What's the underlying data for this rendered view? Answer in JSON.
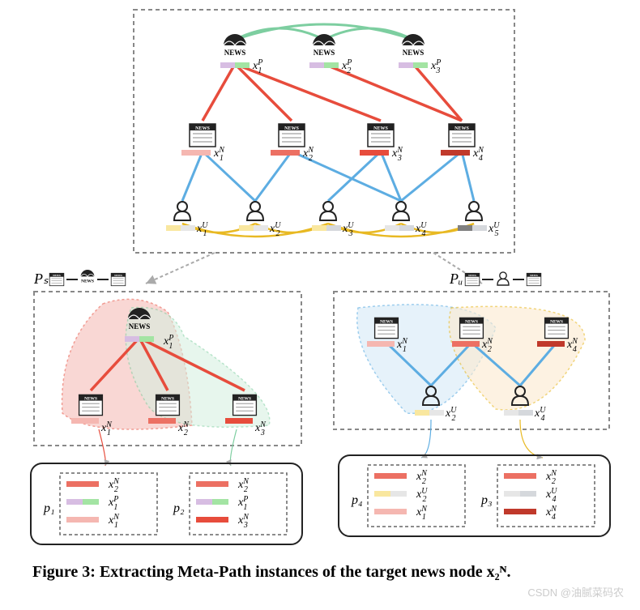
{
  "caption": "Figure 3: Extracting Meta-Path instances of the target news node x₂ᴺ.",
  "watermark": "CSDN @油腻菜码农",
  "colors": {
    "red_edge": "#e74c3c",
    "blue_edge": "#5dade2",
    "green_edge": "#7dcea0",
    "gold_edge": "#e8b923",
    "pink1": "#f5b7b1",
    "pink2": "#ec7063",
    "pink3": "#e74c3c",
    "darkred": "#c0392b",
    "lav": "#d7bde2",
    "gprov": "#a3e4a3",
    "tan1": "#f9e79f",
    "tan2": "#e6e6e6",
    "tan3": "#d5d8dc",
    "tan4": "#808080",
    "blob_red": "#f5b7b1",
    "blob_green": "#d4efdf",
    "blob_blue": "#d6eaf8",
    "blob_yellow": "#fdebd0"
  },
  "top": {
    "providers": [
      {
        "label": "x",
        "sub": "1",
        "sup": "P",
        "swatches": [
          "#d7bde2",
          "#a3e4a3"
        ]
      },
      {
        "label": "x",
        "sub": "2",
        "sup": "P",
        "swatches": [
          "#d7bde2",
          "#a3e4a3"
        ]
      },
      {
        "label": "x",
        "sub": "3",
        "sup": "P",
        "swatches": [
          "#d7bde2",
          "#a3e4a3"
        ]
      }
    ],
    "news": [
      {
        "label": "x",
        "sub": "1",
        "sup": "N",
        "swatch": "#f5b7b1"
      },
      {
        "label": "x",
        "sub": "2",
        "sup": "N",
        "swatch": "#ec7063"
      },
      {
        "label": "x",
        "sub": "3",
        "sup": "N",
        "swatch": "#e74c3c"
      },
      {
        "label": "x",
        "sub": "4",
        "sup": "N",
        "swatch": "#c0392b"
      }
    ],
    "users": [
      {
        "label": "x",
        "sub": "1",
        "sup": "U",
        "sw": [
          "#f9e79f",
          "#e6e6e6"
        ]
      },
      {
        "label": "x",
        "sub": "2",
        "sup": "U",
        "sw": [
          "#f9e79f",
          "#e6e6e6"
        ]
      },
      {
        "label": "x",
        "sub": "3",
        "sup": "U",
        "sw": [
          "#f9e79f",
          "#d5d8dc"
        ]
      },
      {
        "label": "x",
        "sub": "4",
        "sup": "U",
        "sw": [
          "#e6e6e6",
          "#d5d8dc"
        ]
      },
      {
        "label": "x",
        "sub": "5",
        "sup": "U",
        "sw": [
          "#808080",
          "#d5d8dc"
        ]
      }
    ],
    "edges_PN": [
      [
        0,
        0
      ],
      [
        0,
        1
      ],
      [
        0,
        2
      ],
      [
        1,
        3
      ],
      [
        2,
        3
      ]
    ],
    "edges_NU": [
      [
        0,
        0
      ],
      [
        0,
        1
      ],
      [
        1,
        1
      ],
      [
        1,
        3
      ],
      [
        2,
        2
      ],
      [
        2,
        3
      ],
      [
        3,
        3
      ],
      [
        3,
        4
      ]
    ],
    "edges_PP": [
      [
        0,
        1
      ],
      [
        1,
        2
      ],
      [
        0,
        2
      ]
    ],
    "edges_UU": [
      [
        0,
        1
      ],
      [
        1,
        2
      ],
      [
        2,
        3
      ],
      [
        3,
        4
      ],
      [
        0,
        2
      ],
      [
        2,
        4
      ]
    ]
  },
  "left": {
    "title": "Pₛ",
    "schema": [
      "news-doc",
      "provider",
      "news-doc"
    ],
    "provider": {
      "label": "x",
      "sub": "1",
      "sup": "P",
      "swatches": [
        "#d7bde2",
        "#a3e4a3"
      ]
    },
    "news": [
      {
        "label": "x",
        "sub": "1",
        "sup": "N",
        "swatch": "#f5b7b1"
      },
      {
        "label": "x",
        "sub": "2",
        "sup": "N",
        "swatch": "#ec7063"
      },
      {
        "label": "x",
        "sub": "3",
        "sup": "N",
        "swatch": "#e74c3c"
      }
    ],
    "paths": [
      {
        "id": "p₁",
        "items": [
          {
            "sw": "#ec7063",
            "t": "x",
            "s": "2",
            "p": "N"
          },
          {
            "sw": "#d7bde2",
            "sw2": "#a3e4a3",
            "t": "x",
            "s": "1",
            "p": "P"
          },
          {
            "sw": "#f5b7b1",
            "t": "x",
            "s": "1",
            "p": "N"
          }
        ]
      },
      {
        "id": "p₂",
        "items": [
          {
            "sw": "#ec7063",
            "t": "x",
            "s": "2",
            "p": "N"
          },
          {
            "sw": "#d7bde2",
            "sw2": "#a3e4a3",
            "t": "x",
            "s": "1",
            "p": "P"
          },
          {
            "sw": "#e74c3c",
            "t": "x",
            "s": "3",
            "p": "N"
          }
        ]
      }
    ]
  },
  "right": {
    "title": "Pᵤ",
    "schema": [
      "news-doc",
      "user",
      "news-doc"
    ],
    "news": [
      {
        "label": "x",
        "sub": "1",
        "sup": "N",
        "swatch": "#f5b7b1"
      },
      {
        "label": "x",
        "sub": "2",
        "sup": "N",
        "swatch": "#ec7063"
      },
      {
        "label": "x",
        "sub": "4",
        "sup": "N",
        "swatch": "#c0392b"
      }
    ],
    "users": [
      {
        "label": "x",
        "sub": "2",
        "sup": "U",
        "sw": [
          "#f9e79f",
          "#e6e6e6"
        ]
      },
      {
        "label": "x",
        "sub": "4",
        "sup": "U",
        "sw": [
          "#e6e6e6",
          "#d5d8dc"
        ]
      }
    ],
    "paths": [
      {
        "id": "p₄",
        "items": [
          {
            "sw": "#ec7063",
            "t": "x",
            "s": "2",
            "p": "N"
          },
          {
            "sw": "#f9e79f",
            "sw2": "#e6e6e6",
            "t": "x",
            "s": "2",
            "p": "U"
          },
          {
            "sw": "#f5b7b1",
            "t": "x",
            "s": "1",
            "p": "N"
          }
        ]
      },
      {
        "id": "p₃",
        "items": [
          {
            "sw": "#ec7063",
            "t": "x",
            "s": "2",
            "p": "N"
          },
          {
            "sw": "#e6e6e6",
            "sw2": "#d5d8dc",
            "t": "x",
            "s": "4",
            "p": "U"
          },
          {
            "sw": "#c0392b",
            "t": "x",
            "s": "4",
            "p": "N"
          }
        ]
      }
    ]
  }
}
